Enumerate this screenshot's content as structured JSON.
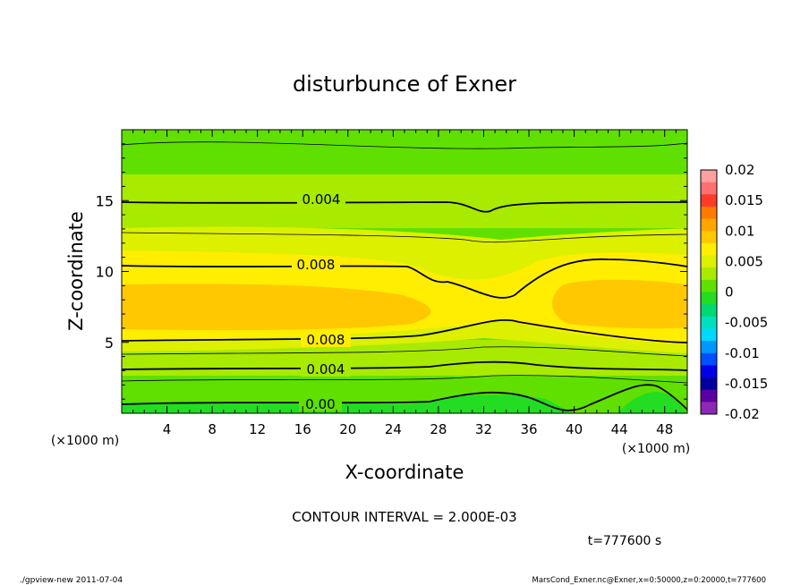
{
  "chart_data": {
    "type": "heatmap",
    "title": "disturbunce of Exner",
    "xlabel": "X-coordinate",
    "ylabel": "Z-coordinate",
    "x_unit": "(×1000 m)",
    "xlim": [
      0,
      50
    ],
    "ylim": [
      0,
      20
    ],
    "x_ticks": [
      4,
      8,
      12,
      16,
      20,
      24,
      28,
      32,
      36,
      40,
      44,
      48
    ],
    "y_ticks": [
      5,
      10,
      15
    ],
    "colorbar": {
      "labels": [
        "0.02",
        "0.015",
        "0.01",
        "0.005",
        "0",
        "-0.005",
        "-0.01",
        "-0.015",
        "-0.02"
      ],
      "min": -0.02,
      "max": 0.02,
      "colors": [
        "#ffa0a0",
        "#ff7070",
        "#ff3c28",
        "#ff7a00",
        "#ffa500",
        "#ffc800",
        "#ffee00",
        "#dcf000",
        "#a8ea00",
        "#60e000",
        "#22dd22",
        "#00d870",
        "#00e0c0",
        "#00d8ff",
        "#0096ff",
        "#0050ff",
        "#0000e6",
        "#0000a0",
        "#5a00a0",
        "#8c28b4"
      ]
    },
    "contour_labels": [
      "0.004",
      "0.008",
      "0.008",
      "0.004",
      "0.00"
    ],
    "contour_interval_text": "CONTOUR INTERVAL = 2.000E-03",
    "time_text": "t=777600 s",
    "footer_left": "./gpview-new   2011-07-04",
    "footer_right": "MarsCond_Exner.nc@Exner,x=0:50000,z=0:20000,t=777600"
  }
}
